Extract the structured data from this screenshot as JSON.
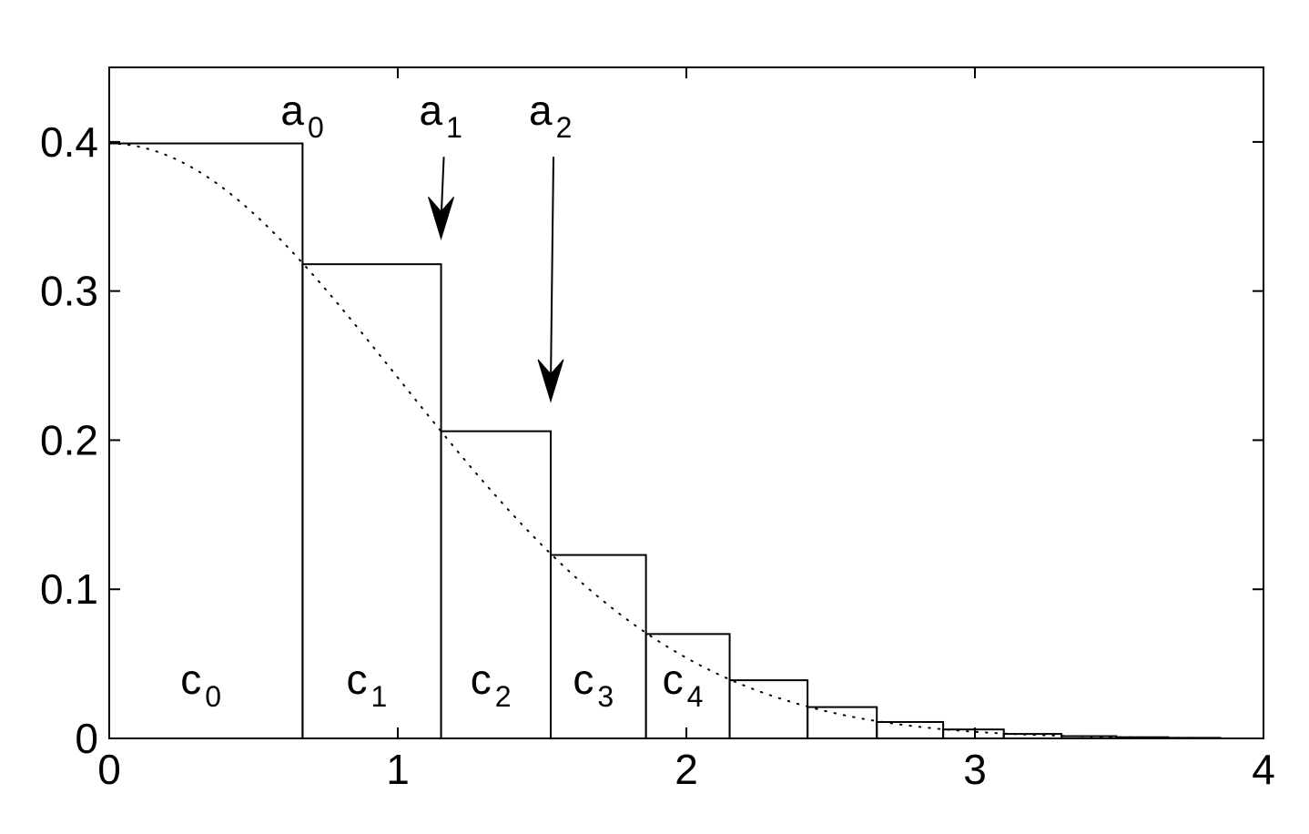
{
  "chart_data": {
    "type": "bar",
    "title": "",
    "xlabel": "",
    "ylabel": "",
    "xlim": [
      0,
      4
    ],
    "ylim": [
      0,
      0.45
    ],
    "xticks": [
      "0",
      "1",
      "2",
      "3",
      "4"
    ],
    "yticks": [
      "0",
      "0.1",
      "0.2",
      "0.3",
      "0.4"
    ],
    "grid": false,
    "bars": [
      {
        "x0": 0.0,
        "x1": 0.67,
        "height": 0.399
      },
      {
        "x0": 0.67,
        "x1": 1.15,
        "height": 0.318
      },
      {
        "x0": 1.15,
        "x1": 1.53,
        "height": 0.206
      },
      {
        "x0": 1.53,
        "x1": 1.86,
        "height": 0.123
      },
      {
        "x0": 1.86,
        "x1": 2.15,
        "height": 0.07
      },
      {
        "x0": 2.15,
        "x1": 2.42,
        "height": 0.039
      },
      {
        "x0": 2.42,
        "x1": 2.66,
        "height": 0.021
      },
      {
        "x0": 2.66,
        "x1": 2.89,
        "height": 0.011
      },
      {
        "x0": 2.89,
        "x1": 3.1,
        "height": 0.006
      },
      {
        "x0": 3.1,
        "x1": 3.3,
        "height": 0.003
      },
      {
        "x0": 3.3,
        "x1": 3.49,
        "height": 0.0015
      },
      {
        "x0": 3.49,
        "x1": 3.67,
        "height": 0.0008
      },
      {
        "x0": 3.67,
        "x1": 3.85,
        "height": 0.0004
      }
    ],
    "curve": {
      "style": "dotted",
      "function": "standard normal density",
      "x_range": [
        0,
        3.85
      ]
    },
    "annotations": [
      {
        "base": "a",
        "sub": "0",
        "x": 0.67,
        "arrow": false
      },
      {
        "base": "a",
        "sub": "1",
        "x": 1.15,
        "arrow": true,
        "arrow_from_y": 0.39,
        "arrow_to_y": 0.335
      },
      {
        "base": "a",
        "sub": "2",
        "x": 1.53,
        "arrow": true,
        "arrow_from_y": 0.39,
        "arrow_to_y": 0.226
      }
    ],
    "bar_labels": [
      {
        "base": "c",
        "sub": "0"
      },
      {
        "base": "c",
        "sub": "1"
      },
      {
        "base": "c",
        "sub": "2"
      },
      {
        "base": "c",
        "sub": "3"
      },
      {
        "base": "c",
        "sub": "4"
      }
    ]
  }
}
